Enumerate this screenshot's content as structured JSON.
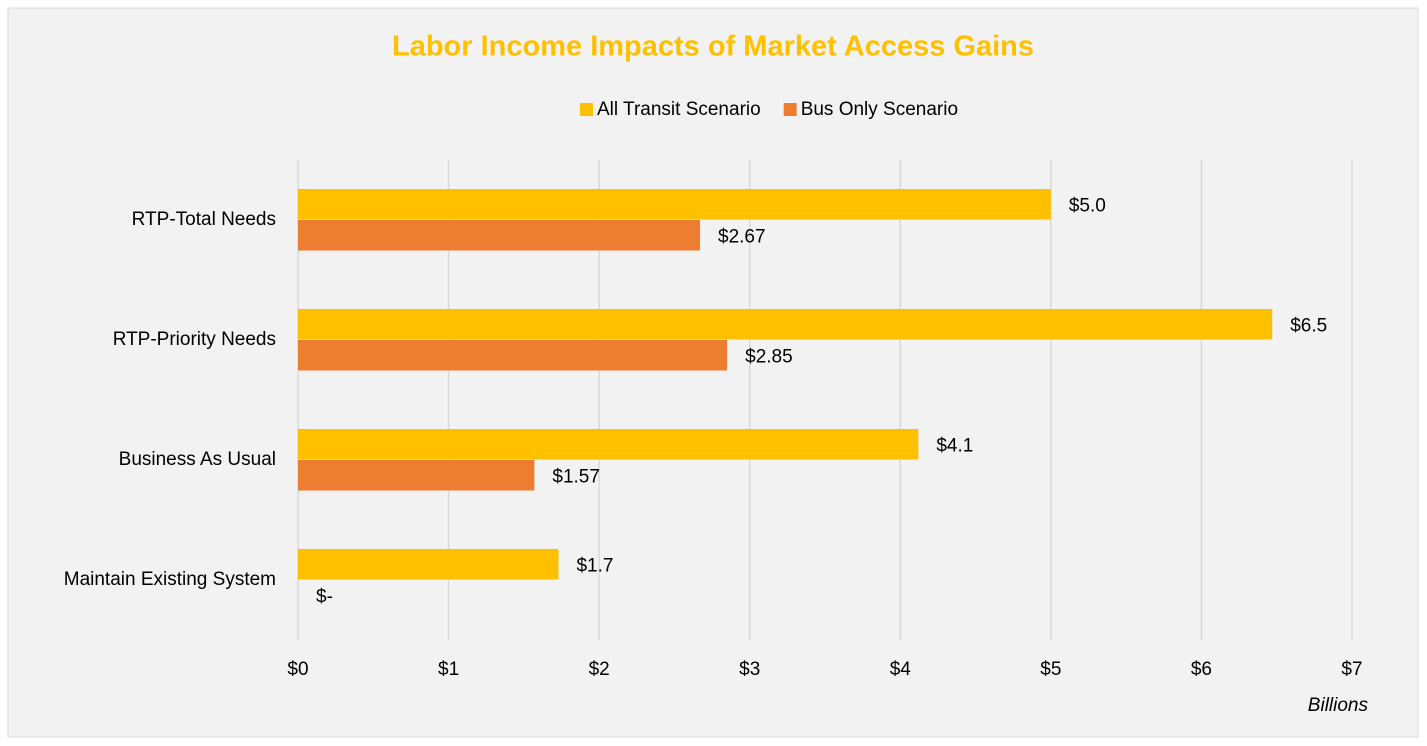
{
  "chart_data": {
    "type": "hbar",
    "title": "Labor Income Impacts of Market Access Gains",
    "categories": [
      "RTP-Total Needs",
      "RTP-Priority Needs",
      "Business As Usual",
      "Maintain Existing System"
    ],
    "series": [
      {
        "name": "All Transit Scenario",
        "color": "#FFC000",
        "values": [
          5.0,
          6.47,
          4.12,
          1.73
        ],
        "value_labels": [
          "$5.0",
          "$6.5",
          "$4.1",
          "$1.7"
        ]
      },
      {
        "name": "Bus Only Scenario",
        "color": "#ED7D31",
        "values": [
          2.67,
          2.85,
          1.57,
          0
        ],
        "value_labels": [
          "$2.67",
          "$2.85",
          "$1.57",
          "$-"
        ]
      }
    ],
    "xlim": [
      0,
      7
    ],
    "xticks": [
      {
        "value": 0,
        "label": "$0"
      },
      {
        "value": 1,
        "label": "$1"
      },
      {
        "value": 2,
        "label": "$2"
      },
      {
        "value": 3,
        "label": "$3"
      },
      {
        "value": 4,
        "label": "$4"
      },
      {
        "value": 5,
        "label": "$5"
      },
      {
        "value": 6,
        "label": "$6"
      },
      {
        "value": 7,
        "label": "$7"
      }
    ],
    "x_axis_label": "Billions",
    "grid": true,
    "legend": "top"
  }
}
